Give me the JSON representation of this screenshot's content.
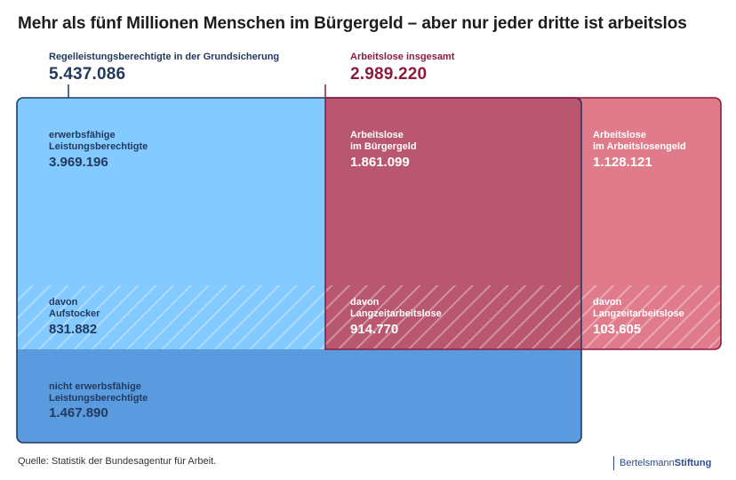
{
  "title": "Mehr als fünf Millionen Menschen im Bürgergeld – aber nur jeder dritte ist arbeitslos",
  "colors": {
    "light_blue": "#82caff",
    "mid_blue": "#5a9be0",
    "dark_red": "#b95770",
    "pink": "#e07b8b",
    "navy": "#233a5e",
    "crimson": "#8c1c3c"
  },
  "chart_data": {
    "type": "treemap",
    "title": "Mehr als fünf Millionen Menschen im Bürgergeld – aber nur jeder dritte ist arbeitslos",
    "groups": [
      {
        "name": "Regelleistungsberechtigte in der Grundsicherung",
        "value_label": "5.437.086",
        "value": 5437086
      },
      {
        "name": "Arbeitslose insgesamt",
        "value_label": "2.989.220",
        "value": 2989220
      }
    ],
    "cells": [
      {
        "id": "ewlb",
        "label1": "erwerbsfähige",
        "label2": "Leistungsberechtigte",
        "value_label": "3.969.196",
        "value": 3969196
      },
      {
        "id": "alg2",
        "label1": "Arbeitslose",
        "label2": "im Bürgergeld",
        "value_label": "1.861.099",
        "value": 1861099
      },
      {
        "id": "alg1",
        "label1": "Arbeitslose",
        "label2": "im Arbeitslosengeld",
        "value_label": "1.128.121",
        "value": 1128121
      },
      {
        "id": "aufstocker",
        "label1": "davon",
        "label2": "Aufstocker",
        "value_label": "831.882",
        "value": 831882
      },
      {
        "id": "lza_bg",
        "label1": "davon",
        "label2": "Langzeitarbeitslose",
        "value_label": "914.770",
        "value": 914770
      },
      {
        "id": "lza_alg",
        "label1": "davon",
        "label2": "Langzeitarbeitslose",
        "value_label": "103.605",
        "value": 103605
      },
      {
        "id": "nef",
        "label1": "nicht erwerbsfähige",
        "label2": "Leistungsberechtigte",
        "value_label": "1.467.890",
        "value": 1467890
      }
    ]
  },
  "source": "Quelle: Statistik der Bundesagentur für Arbeit.",
  "logo": {
    "part1": "Bertelsmann",
    "part2": "Stiftung"
  }
}
